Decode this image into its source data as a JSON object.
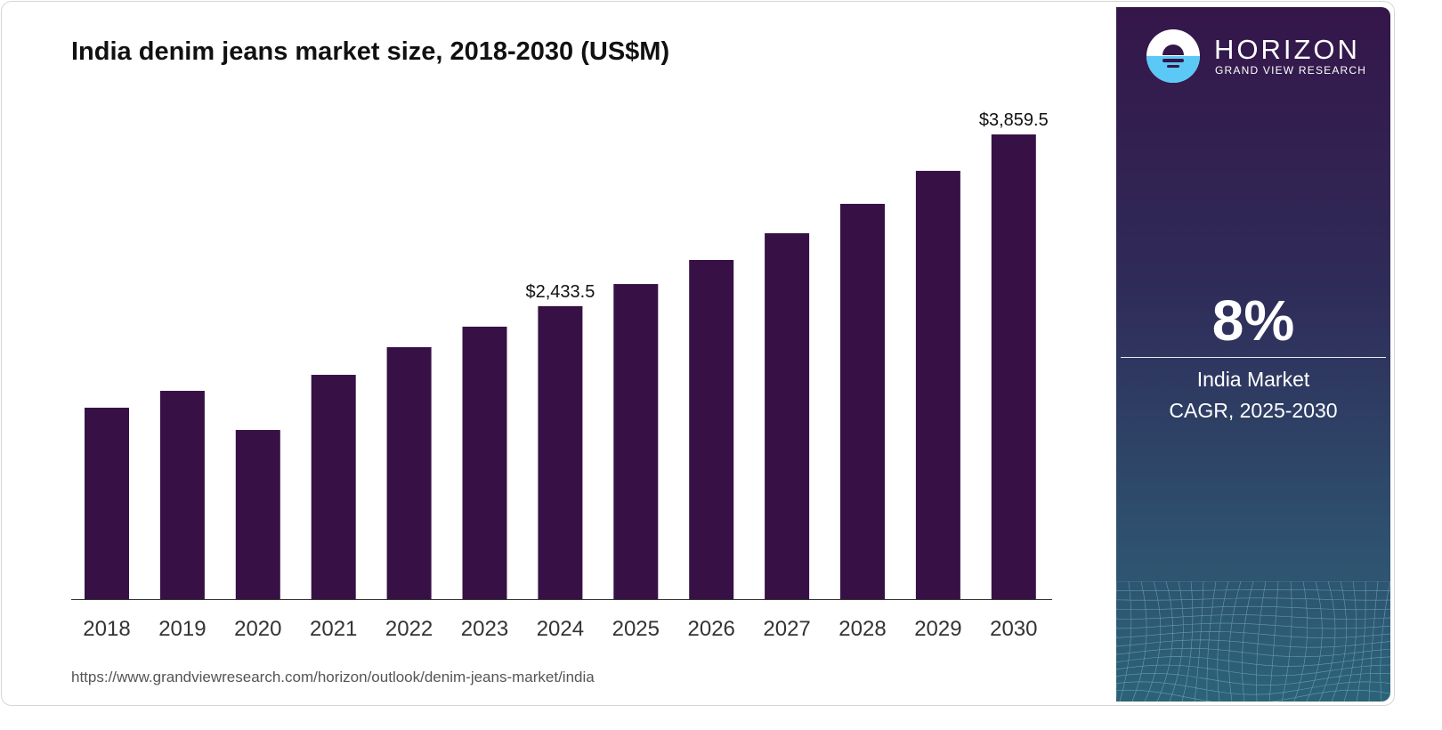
{
  "title": "India denim jeans market size, 2018-2030 (US$M)",
  "source_url": "https://www.grandviewresearch.com/horizon/outlook/denim-jeans-market/india",
  "brand": {
    "name": "HORIZON",
    "subtitle": "GRAND VIEW RESEARCH"
  },
  "stat": {
    "value": "8%",
    "label_line1": "India Market",
    "label_line2": "CAGR, 2025-2030"
  },
  "colors": {
    "bar": "#371146",
    "panel_top": "#35164a",
    "panel_bottom": "#2c6378"
  },
  "chart_data": {
    "type": "bar",
    "title": "India denim jeans market size, 2018-2030 (US$M)",
    "categories": [
      "2018",
      "2019",
      "2020",
      "2021",
      "2022",
      "2023",
      "2024",
      "2025",
      "2026",
      "2027",
      "2028",
      "2029",
      "2030"
    ],
    "values": [
      1590,
      1730,
      1405,
      1863,
      2093,
      2263,
      2433.5,
      2617,
      2817,
      3039,
      3283,
      3557,
      3859.5
    ],
    "data_labels": {
      "2024": "$2,433.5",
      "2030": "$3,859.5"
    },
    "xlabel": "",
    "ylabel": "",
    "ylim": [
      0,
      3859.5
    ],
    "grid": false,
    "legend": "none"
  }
}
